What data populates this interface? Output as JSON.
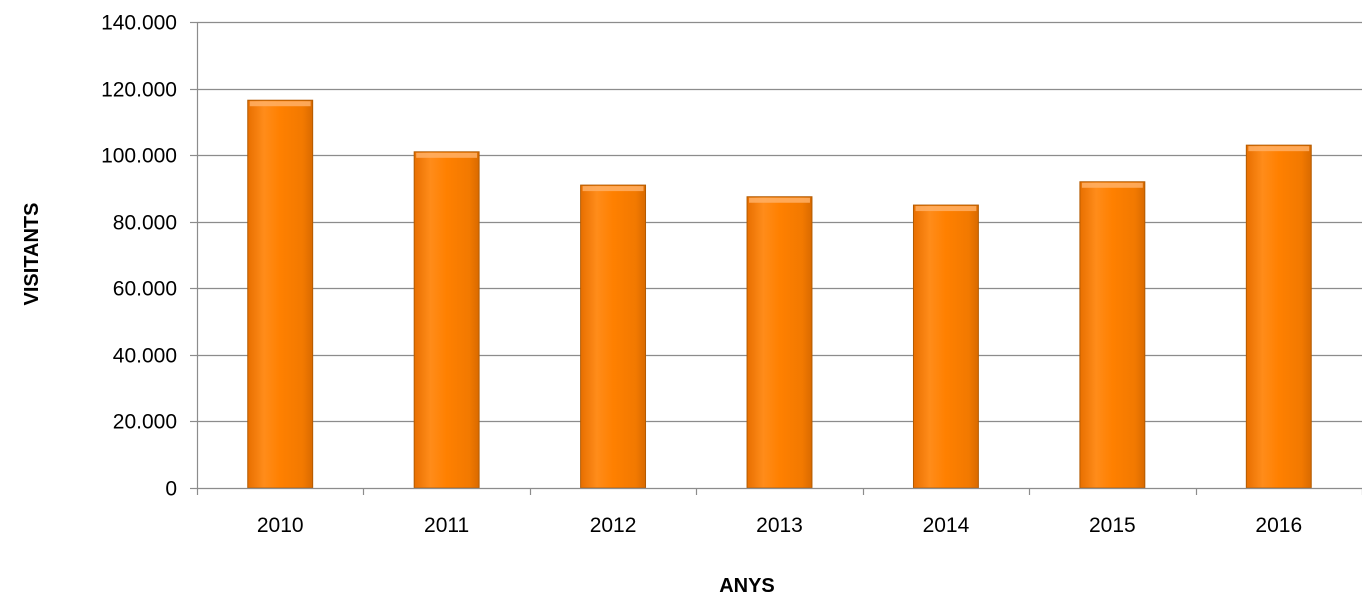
{
  "chart_data": {
    "type": "bar",
    "title": "",
    "xlabel": "ANYS",
    "ylabel": "VISITANTS",
    "categories": [
      "2010",
      "2011",
      "2012",
      "2013",
      "2014",
      "2015",
      "2016"
    ],
    "series": [
      {
        "values": [
          116500,
          101000,
          91000,
          87500,
          85000,
          92000,
          103000
        ]
      }
    ],
    "ylim": [
      0,
      140000
    ],
    "yticks": [
      0,
      20000,
      40000,
      60000,
      80000,
      100000,
      120000,
      140000
    ],
    "ytick_labels": [
      "0",
      "20.000",
      "40.000",
      "60.000",
      "80.000",
      "100.000",
      "120.000",
      "140.000"
    ],
    "grid": true,
    "legend": "none",
    "colors": {
      "bar": "#ff8000",
      "bar_highlight": "#ffb066",
      "bar_edge": "#b35a00",
      "grid": "#8c8c8c"
    }
  }
}
